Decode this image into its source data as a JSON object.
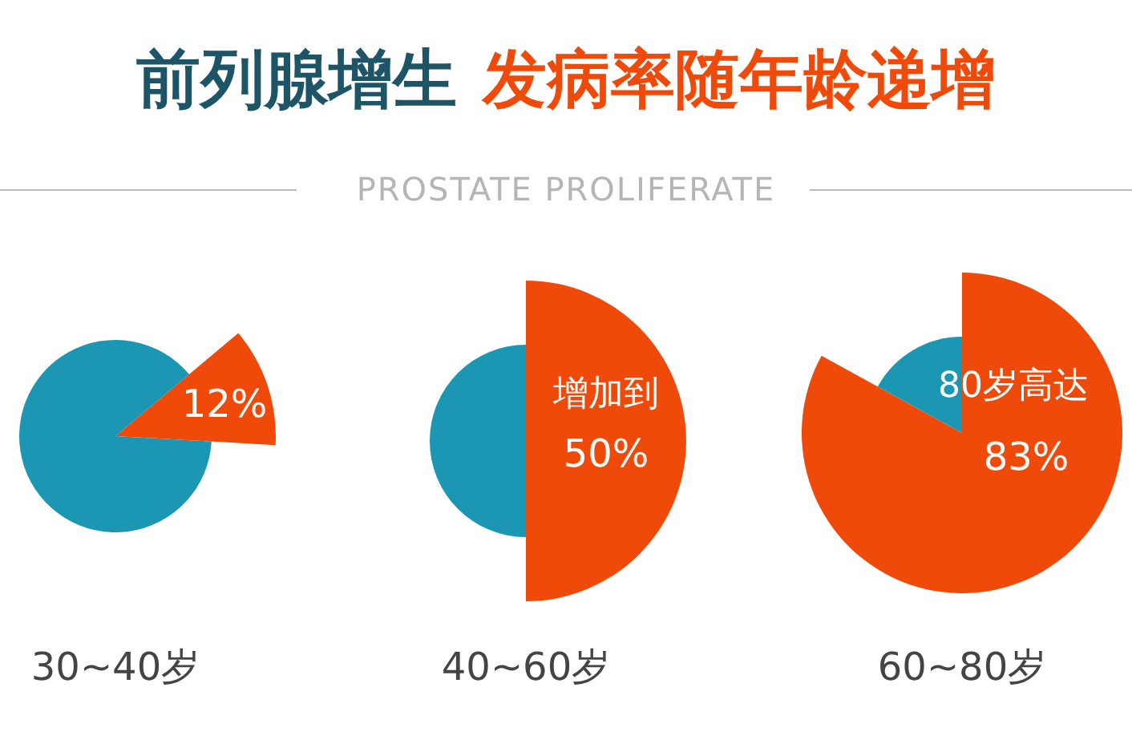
{
  "chart_data": [
    {
      "type": "other",
      "title": "前列腺增生 发病率随年龄递增",
      "subtitle": "PROSTATE PROLIFERATE"
    },
    {
      "type": "pie",
      "xlabel": "30~40岁",
      "categories": [
        null,
        null
      ],
      "values": [
        12,
        88
      ],
      "colors": [
        "#f04a0a",
        "#1c97b3"
      ],
      "value_labels": [
        "12%",
        null
      ],
      "legend": false
    },
    {
      "type": "pie",
      "xlabel": "40~60岁",
      "categories": [
        null,
        null
      ],
      "values": [
        50,
        50
      ],
      "colors": [
        "#f04a0a",
        "#1c97b3"
      ],
      "value_labels": [
        "50%",
        null
      ],
      "annotations": [
        "增加到"
      ],
      "legend": false
    },
    {
      "type": "pie",
      "xlabel": "60~80岁",
      "categories": [
        null,
        null
      ],
      "values": [
        83,
        17
      ],
      "colors": [
        "#f04a0a",
        "#1c97b3"
      ],
      "value_labels": [
        "83%",
        null
      ],
      "annotations": [
        "80岁高达"
      ],
      "legend": false
    }
  ]
}
